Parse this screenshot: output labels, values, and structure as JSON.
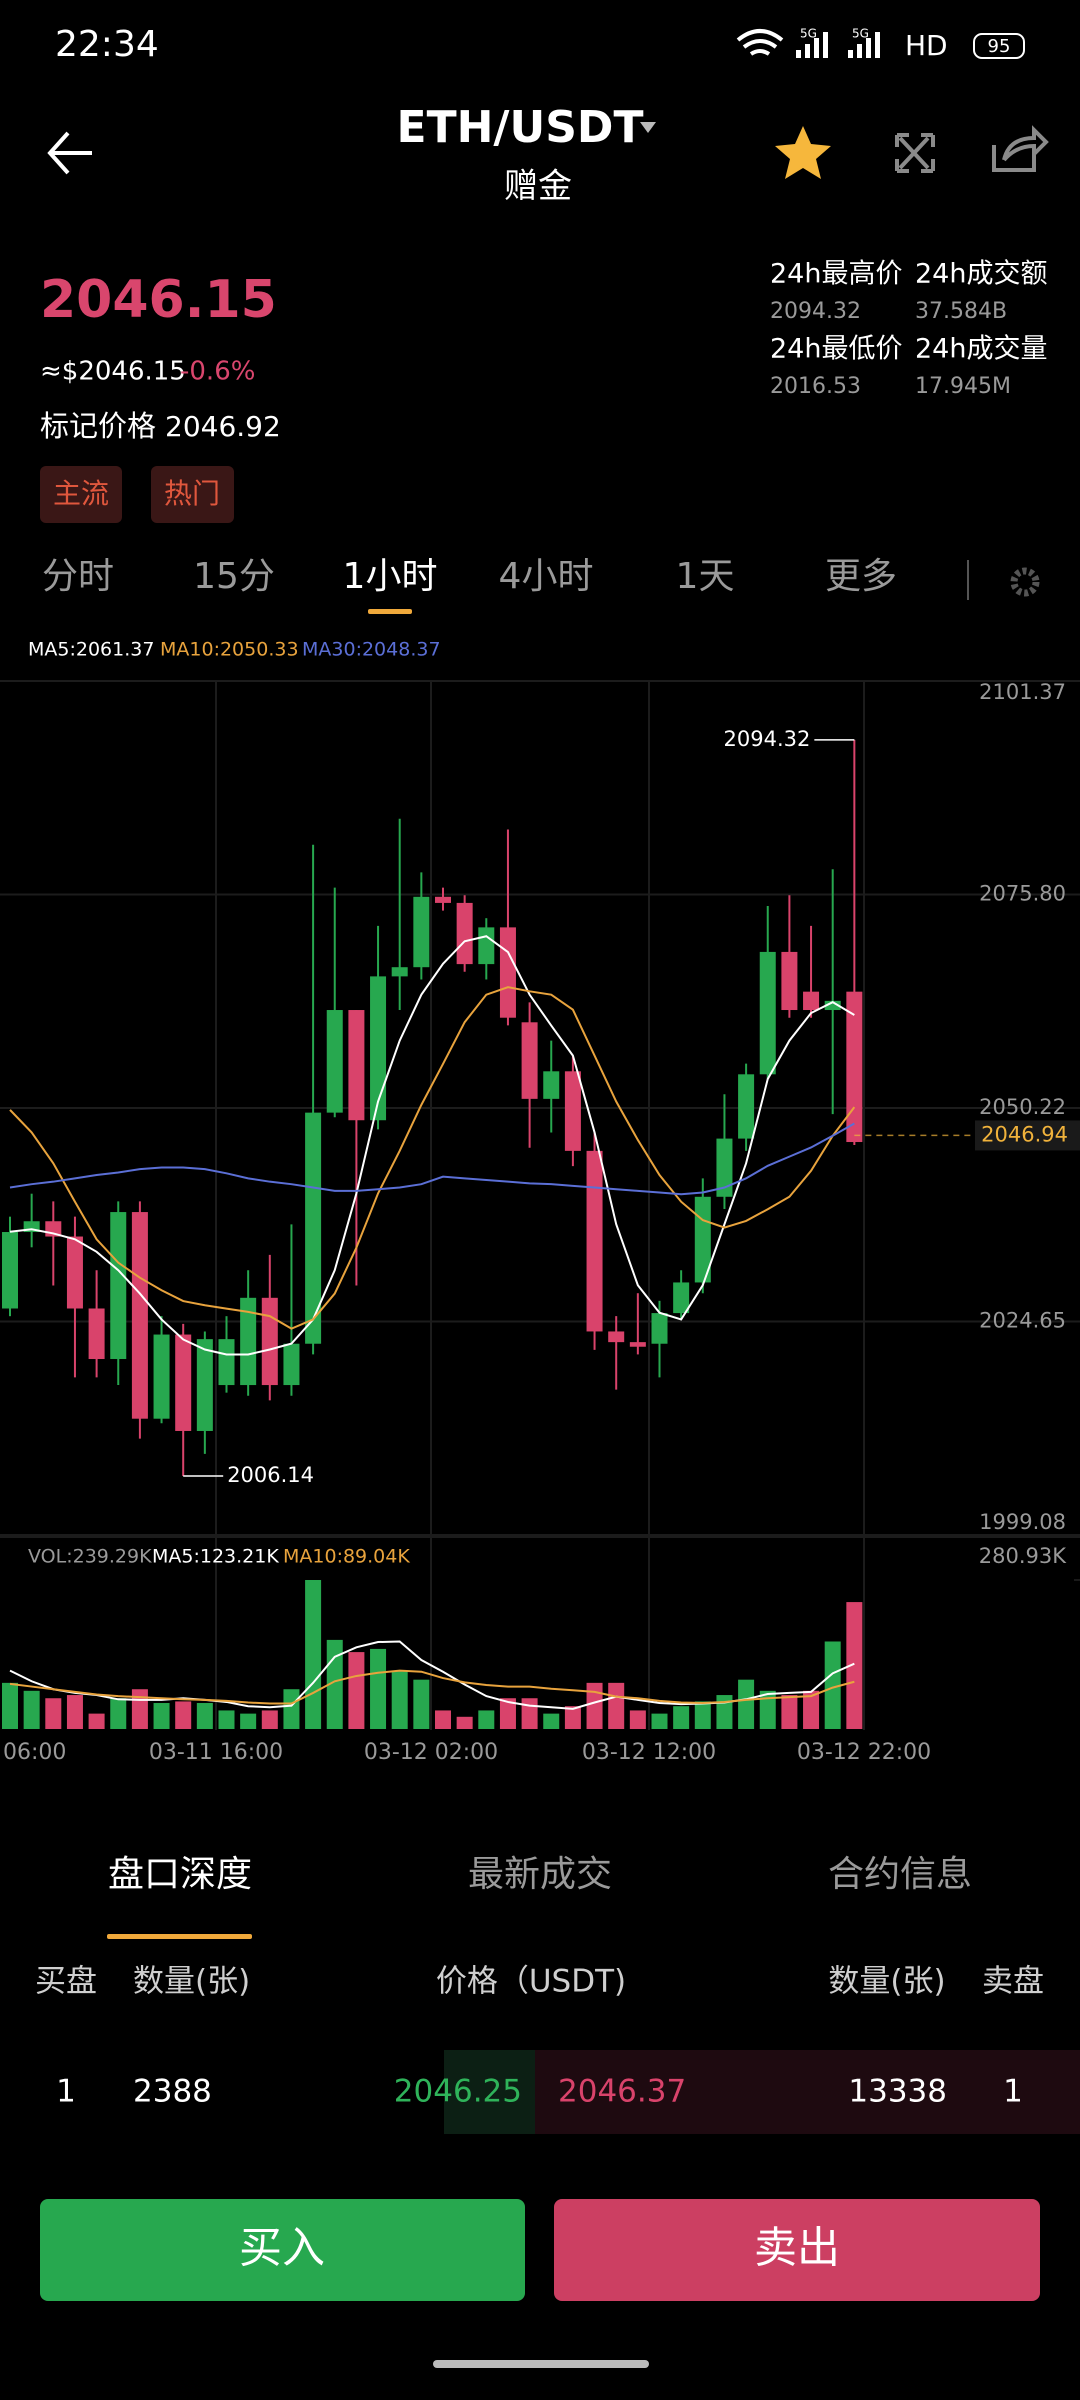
{
  "status_bar": {
    "time": "22:34",
    "network": [
      "5G",
      "5G"
    ],
    "hd": "HD",
    "battery": "95"
  },
  "header": {
    "pair": "ETH/USDT",
    "subtitle": "赠金"
  },
  "ticker": {
    "price": "2046.15",
    "usd": "≈$2046.15",
    "change": "-0.6%",
    "mark_label": "标记价格",
    "mark_price": "2046.92",
    "tags": [
      "主流",
      "热门"
    ],
    "stats": [
      {
        "label": "24h最高价",
        "value": "2094.32"
      },
      {
        "label": "24h成交额",
        "value": "37.584B"
      },
      {
        "label": "24h最低价",
        "value": "2016.53"
      },
      {
        "label": "24h成交量",
        "value": "17.945M"
      }
    ]
  },
  "intervals": {
    "items": [
      "分时",
      "15分",
      "1小时",
      "4小时",
      "1天",
      "更多"
    ],
    "selected": 2
  },
  "chart_data": {
    "type": "candlestick",
    "up_color": "#27a84f",
    "down_color": "#d9436b",
    "candles": {
      "open": [
        2026.21,
        2035.37,
        2036.66,
        2034.83,
        2026.21,
        2020.16,
        2037.76,
        2013.01,
        2023.09,
        2011.54,
        2017.04,
        2017.04,
        2027.49,
        2017.04,
        2021.99,
        2049.67,
        2061.96,
        2048.76,
        2065.99,
        2067.09,
        2075.52,
        2074.79,
        2067.46,
        2071.86,
        2060.49,
        2051.32,
        2054.62,
        2045.09,
        2023.46,
        2022.18,
        2021.99,
        2025.66,
        2029.33,
        2039.59,
        2046.56,
        2054.26,
        2068.92,
        2064.16,
        2061.96,
        2064.16
      ],
      "high": [
        2037.21,
        2039.96,
        2039.04,
        2037.21,
        2030.79,
        2039.04,
        2039.04,
        2025.29,
        2024.37,
        2023.46,
        2025.29,
        2030.79,
        2032.63,
        2036.29,
        2081.75,
        2076.62,
        2061.96,
        2072.04,
        2084.87,
        2078.45,
        2076.62,
        2075.71,
        2072.96,
        2083.59,
        2062.87,
        2058.29,
        2056.46,
        2047.29,
        2025.29,
        2028.04,
        2027.13,
        2030.79,
        2041.79,
        2051.87,
        2055.54,
        2074.42,
        2075.71,
        2072.04,
        2078.82,
        2094.32
      ],
      "low": [
        2025.29,
        2033.54,
        2028.96,
        2017.96,
        2017.96,
        2017.04,
        2010.63,
        2012.46,
        2006.14,
        2008.79,
        2016.13,
        2015.76,
        2015.21,
        2015.76,
        2020.71,
        2049.12,
        2028.96,
        2047.66,
        2061.96,
        2065.62,
        2073.87,
        2066.54,
        2065.62,
        2060.12,
        2045.46,
        2047.29,
        2043.26,
        2021.26,
        2016.49,
        2020.71,
        2017.96,
        2024.93,
        2028.04,
        2038.12,
        2045.09,
        2053.71,
        2061.04,
        2061.04,
        2049.49,
        2045.8
      ],
      "close": [
        2035.37,
        2036.66,
        2034.83,
        2026.21,
        2020.16,
        2037.76,
        2013.01,
        2023.09,
        2011.54,
        2022.54,
        2022.54,
        2027.49,
        2017.04,
        2021.99,
        2049.67,
        2061.96,
        2048.76,
        2065.99,
        2067.09,
        2075.52,
        2074.79,
        2067.46,
        2071.86,
        2061.04,
        2051.32,
        2054.62,
        2045.09,
        2023.46,
        2022.18,
        2021.63,
        2025.66,
        2029.33,
        2039.59,
        2046.56,
        2054.26,
        2068.92,
        2061.96,
        2061.96,
        2063.06,
        2046.15
      ]
    },
    "series": [
      {
        "name": "MA5:2061.37",
        "color": "#ffffff",
        "values": [
          2035.4,
          2035.7,
          2035.2,
          2034.5,
          2033.0,
          2030.8,
          2028.0,
          2024.9,
          2022.5,
          2021.3,
          2020.7,
          2020.7,
          2021.3,
          2022.0,
          2024.9,
          2030.8,
          2040.0,
          2051.0,
          2058.3,
          2063.8,
          2067.5,
          2070.2,
          2070.8,
          2068.9,
          2063.8,
          2060.1,
          2056.5,
          2047.3,
          2036.3,
          2029.0,
          2025.7,
          2024.9,
          2029.0,
          2036.3,
          2043.6,
          2053.7,
          2058.3,
          2061.6,
          2062.9,
          2061.37
        ]
      },
      {
        "name": "MA10:2050.33",
        "color": "#e8a33d",
        "values": [
          2050.0,
          2047.3,
          2043.6,
          2039.0,
          2034.5,
          2031.7,
          2029.9,
          2028.4,
          2027.1,
          2026.6,
          2026.2,
          2025.8,
          2025.3,
          2023.8,
          2024.9,
          2028.0,
          2033.5,
          2040.0,
          2045.1,
          2050.6,
          2055.5,
          2060.5,
          2063.8,
          2064.7,
          2064.2,
          2063.8,
          2062.0,
          2056.5,
          2051.0,
          2046.4,
          2042.2,
          2039.0,
          2036.8,
          2035.9,
          2036.7,
          2038.1,
          2039.6,
          2042.7,
          2046.9,
          2050.33
        ]
      },
      {
        "name": "MA30:2048.37",
        "color": "#5b6fd6",
        "values": [
          2040.7,
          2041.1,
          2041.4,
          2041.8,
          2042.2,
          2042.5,
          2042.9,
          2043.1,
          2043.1,
          2042.9,
          2042.4,
          2041.8,
          2041.4,
          2041.1,
          2040.7,
          2040.3,
          2040.3,
          2040.5,
          2040.7,
          2041.1,
          2042.0,
          2041.8,
          2041.6,
          2041.4,
          2041.2,
          2041.1,
          2040.9,
          2040.7,
          2040.5,
          2040.3,
          2040.1,
          2039.9,
          2040.1,
          2040.7,
          2041.8,
          2043.3,
          2044.4,
          2045.5,
          2046.9,
          2048.37
        ]
      }
    ],
    "ylim": [
      1999.08,
      2101.37
    ],
    "yticks": [
      1999.08,
      2024.65,
      2050.22,
      {
        "value": 2075.8,
        "label": "2075.80"
      },
      2101.37
    ],
    "high_mark": 2094.32,
    "low_mark": 2006.14,
    "last_line": 2046.94,
    "last_line_color": "#f0b23b",
    "xtick_labels": [
      "06:00",
      "03-11 16:00",
      "03-12 02:00",
      "03-12 12:00",
      "03-12 22:00"
    ],
    "volume": {
      "title": "VOL:239.29K",
      "values": [
        87,
        72,
        58,
        64,
        29,
        58,
        75,
        49,
        52,
        49,
        35,
        29,
        35,
        75,
        280.93,
        168,
        145,
        151,
        110,
        93,
        35,
        23,
        35,
        58,
        58,
        29,
        43,
        87,
        87,
        35,
        29,
        43,
        52,
        64,
        93,
        72,
        64,
        72,
        165,
        239.29
      ],
      "ylim": [
        0,
        280.93
      ],
      "yticks": [
        {
          "value": 280.93,
          "label": "280.93K"
        }
      ],
      "series": [
        {
          "name": "MA5:123.21K",
          "color": "#ffffff",
          "values": [
            110,
            90,
            75,
            68,
            64,
            56,
            55,
            55,
            58,
            55,
            51,
            43,
            41,
            44,
            87,
            136,
            154,
            164,
            165,
            130,
            108,
            84,
            62,
            51,
            44,
            41,
            38,
            50,
            61,
            55,
            49,
            47,
            48,
            50,
            56,
            66,
            68,
            70,
            105,
            123.21
          ]
        },
        {
          "name": "MA10:89.04K",
          "color": "#e8a33d",
          "values": [
            85,
            80,
            75,
            70,
            65,
            62,
            60,
            58,
            56,
            55,
            53,
            50,
            48,
            48,
            68,
            90,
            100,
            106,
            110,
            108,
            96,
            88,
            83,
            80,
            80,
            76,
            73,
            70,
            61,
            58,
            53,
            50,
            49,
            51,
            55,
            58,
            60,
            62,
            78,
            89.04
          ]
        }
      ]
    }
  },
  "depth": {
    "tabs": [
      "盘口深度",
      "最新成交",
      "合约信息"
    ],
    "headers": [
      "买盘",
      "数量(张)",
      "价格（USDT)",
      "数量(张)",
      "卖盘"
    ],
    "rows": [
      [
        "1",
        "2388",
        "2046.25",
        "2046.37",
        "13338",
        "1"
      ]
    ]
  },
  "actions": {
    "buy": "买入",
    "sell": "卖出"
  }
}
